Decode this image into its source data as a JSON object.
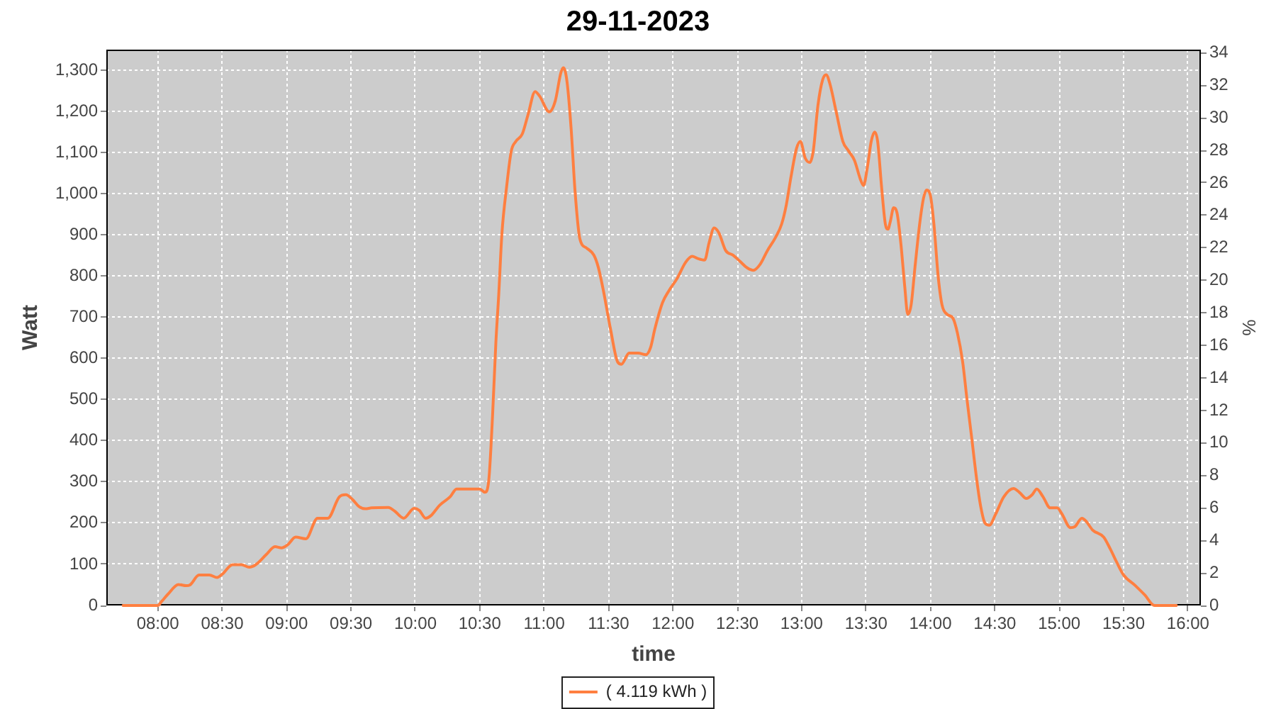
{
  "chart_data": {
    "type": "line",
    "title": "29-11-2023",
    "xlabel": "time",
    "ylabel": "Watt",
    "y2label": "%",
    "x": [
      7.73,
      8.0,
      8.03,
      8.08,
      8.16,
      8.22,
      8.25,
      8.32,
      8.4,
      8.46,
      8.5,
      8.58,
      8.65,
      8.71,
      8.76,
      8.84,
      8.91,
      8.96,
      9.01,
      9.07,
      9.15,
      9.24,
      9.32,
      9.41,
      9.46,
      9.51,
      9.56,
      9.61,
      9.66,
      9.79,
      9.84,
      9.91,
      9.99,
      10.03,
      10.08,
      10.12,
      10.19,
      10.27,
      10.32,
      10.4,
      10.5,
      10.54,
      10.57,
      10.6,
      10.625,
      10.647,
      10.672,
      10.709,
      10.745,
      10.78,
      10.83,
      10.874,
      10.93,
      10.965,
      11.04,
      11.086,
      11.13,
      11.15,
      11.178,
      11.21,
      11.24,
      11.277,
      11.33,
      11.386,
      11.42,
      11.46,
      11.515,
      11.57,
      11.6,
      11.66,
      11.73,
      11.79,
      11.826,
      11.86,
      11.92,
      11.97,
      12.03,
      12.1,
      12.15,
      12.19,
      12.247,
      12.28,
      12.32,
      12.357,
      12.41,
      12.467,
      12.52,
      12.577,
      12.625,
      12.676,
      12.734,
      12.797,
      12.844,
      12.88,
      12.917,
      12.96,
      12.99,
      13.027,
      13.063,
      13.09,
      13.126,
      13.163,
      13.19,
      13.22,
      13.27,
      13.32,
      13.364,
      13.41,
      13.456,
      13.48,
      13.51,
      13.54,
      13.566,
      13.59,
      13.62,
      13.65,
      13.67,
      13.688,
      13.714,
      13.74,
      13.77,
      13.8,
      13.824,
      13.85,
      13.88,
      13.916,
      13.946,
      13.97,
      14.0,
      14.027,
      14.06,
      14.09,
      14.13,
      14.174,
      14.21,
      14.25,
      14.284,
      14.32,
      14.36,
      14.39,
      14.424,
      14.458,
      14.505,
      14.57,
      14.645,
      14.69,
      14.745,
      14.79,
      14.826,
      14.874,
      14.93,
      14.984,
      15.02,
      15.087,
      15.12,
      15.176,
      15.205,
      15.26,
      15.345,
      15.397,
      15.445,
      15.5,
      15.592,
      15.666,
      15.74,
      15.91
    ],
    "series": [
      {
        "name": "( 4.119 kWh )",
        "color": "#ff7f40",
        "values": [
          0,
          0,
          10,
          28,
          51,
          48,
          50,
          74,
          74,
          68,
          76,
          99,
          99,
          93,
          99,
          123,
          143,
          140,
          148,
          166,
          162,
          212,
          212,
          264,
          269,
          258,
          241,
          235,
          237,
          238,
          229,
          212,
          236,
          231,
          212,
          218,
          244,
          264,
          283,
          283,
          283,
          275,
          304,
          465,
          638,
          753,
          903,
          1018,
          1104,
          1127,
          1145,
          1191,
          1248,
          1237,
          1199,
          1225,
          1294,
          1306,
          1271,
          1156,
          1006,
          891,
          868,
          851,
          822,
          765,
          672,
          592,
          586,
          613,
          613,
          609,
          626,
          672,
          736,
          765,
          793,
          834,
          848,
          843,
          839,
          880,
          917,
          905,
          862,
          851,
          836,
          820,
          814,
          828,
          862,
          894,
          926,
          972,
          1041,
          1110,
          1127,
          1087,
          1076,
          1104,
          1214,
          1277,
          1289,
          1266,
          1196,
          1127,
          1104,
          1081,
          1035,
          1020,
          1064,
          1127,
          1150,
          1127,
          1018,
          926,
          914,
          932,
          966,
          954,
          880,
          776,
          707,
          730,
          822,
          926,
          989,
          1009,
          995,
          926,
          799,
          730,
          707,
          698,
          661,
          592,
          500,
          408,
          304,
          241,
          200,
          195,
          221,
          264,
          284,
          275,
          260,
          269,
          283,
          264,
          237,
          237,
          223,
          189,
          191,
          212,
          206,
          183,
          166,
          137,
          106,
          74,
          48,
          25,
          0,
          0
        ]
      }
    ],
    "xlim": [
      7.6,
      16.1
    ],
    "xticks": [
      {
        "value": 8,
        "label": "08:00"
      },
      {
        "value": 8.5,
        "label": "08:30"
      },
      {
        "value": 9,
        "label": "09:00"
      },
      {
        "value": 9.5,
        "label": "09:30"
      },
      {
        "value": 10,
        "label": "10:00"
      },
      {
        "value": 10.5,
        "label": "10:30"
      },
      {
        "value": 11,
        "label": "11:00"
      },
      {
        "value": 11.5,
        "label": "11:30"
      },
      {
        "value": 12,
        "label": "12:00"
      },
      {
        "value": 12.5,
        "label": "12:30"
      },
      {
        "value": 13,
        "label": "13:00"
      },
      {
        "value": 13.5,
        "label": "13:30"
      },
      {
        "value": 14,
        "label": "14:00"
      },
      {
        "value": 14.5,
        "label": "14:30"
      },
      {
        "value": 15,
        "label": "15:00"
      },
      {
        "value": 15.5,
        "label": "15:30"
      },
      {
        "value": 16,
        "label": "16:00"
      }
    ],
    "ylim": [
      0,
      1350
    ],
    "yticks": [
      0,
      100,
      200,
      300,
      400,
      500,
      600,
      700,
      800,
      900,
      {
        "value": 1000,
        "label": "1,000"
      },
      {
        "value": 1100,
        "label": "1,100"
      },
      {
        "value": 1200,
        "label": "1,200"
      },
      {
        "value": 1300,
        "label": "1,300"
      }
    ],
    "y2lim": [
      0,
      34.2
    ],
    "y2ticks": [
      0,
      2,
      4,
      6,
      8,
      10,
      12,
      14,
      16,
      18,
      20,
      22,
      24,
      26,
      28,
      30,
      32,
      34
    ],
    "grid": true,
    "legend": "bottom",
    "marker": "none"
  }
}
